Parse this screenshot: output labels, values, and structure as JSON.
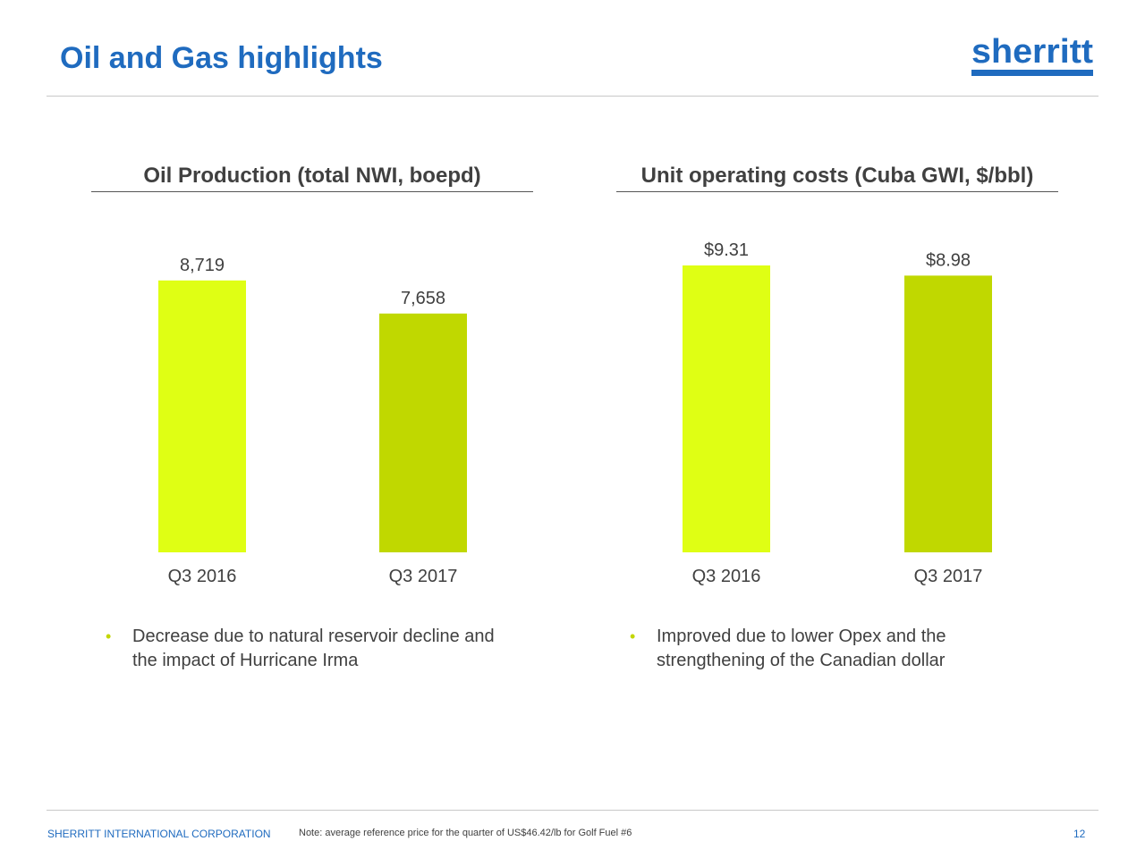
{
  "slide": {
    "title": "Oil and Gas highlights",
    "logo_text": "sherritt"
  },
  "chart_data": [
    {
      "type": "bar",
      "title": "Oil Production (total NWI, boepd)",
      "categories": [
        "Q3 2016",
        "Q3 2017"
      ],
      "values": [
        8719,
        7658
      ],
      "value_labels": [
        "8,719",
        "7,658"
      ],
      "colors": [
        "#dfff14",
        "#c0d800"
      ],
      "ylim": [
        0,
        9200
      ],
      "xlabel": "",
      "ylabel": "",
      "grid": false
    },
    {
      "type": "bar",
      "title": "Unit operating costs (Cuba GWI, $/bbl)",
      "categories": [
        "Q3 2016",
        "Q3 2017"
      ],
      "values": [
        9.31,
        8.98
      ],
      "value_labels": [
        "$9.31",
        "$8.98"
      ],
      "colors": [
        "#dfff14",
        "#c0d800"
      ],
      "ylim": [
        0,
        9.31
      ],
      "xlabel": "",
      "ylabel": "",
      "grid": false
    }
  ],
  "bullets": {
    "left": "Decrease due to natural reservoir decline and the impact of Hurricane Irma",
    "right": "Improved due to lower Opex and the strengthening of the Canadian dollar",
    "marker": "•"
  },
  "footer": {
    "company": "SHERRITT INTERNATIONAL CORPORATION",
    "note": "Note: average reference price for the quarter of US$46.42/lb for Golf Fuel #6",
    "page": "12"
  },
  "colors": {
    "title_blue": "#1f6bbf",
    "bar_light": "#dfff14",
    "bar_dark": "#c0d800",
    "bullet_green": "#c3d600"
  }
}
